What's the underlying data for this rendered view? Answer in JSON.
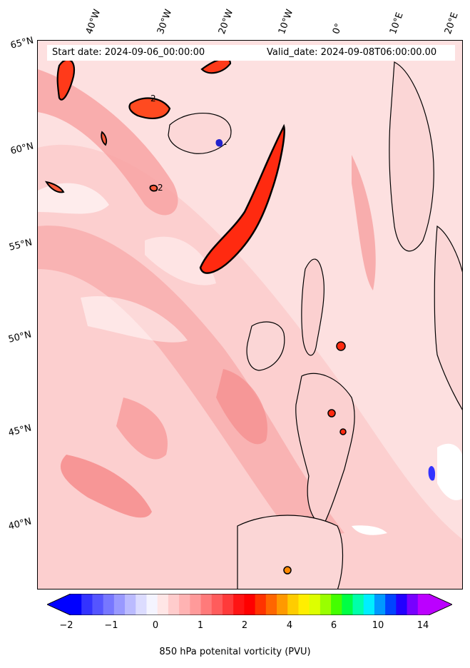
{
  "header": {
    "start_date": "Start date: 2024-09-06_00:00:00",
    "valid_date": "Valid_date: 2024-09-08T06:00:00.00"
  },
  "latitude_labels": [
    "65°N",
    "60°N",
    "55°N",
    "50°N",
    "45°N",
    "40°N"
  ],
  "longitude_labels": [
    "40°W",
    "30°W",
    "20°W",
    "10°W",
    "0°",
    "10°E",
    "20°E"
  ],
  "contour_label": "2",
  "colorbar": {
    "label": "850 hPa potenital vorticity (PVU)",
    "tick_labels": [
      "−2",
      "−1",
      "0",
      "1",
      "2",
      "4",
      "6",
      "10",
      "14"
    ],
    "colors": [
      "#0000ff",
      "#3333ff",
      "#5555ff",
      "#7777ff",
      "#9999ff",
      "#bbbbff",
      "#dcdcff",
      "#f4f4ff",
      "#ffe6e6",
      "#ffcccc",
      "#ffb3b3",
      "#ff9a9a",
      "#ff7a7a",
      "#ff5c5c",
      "#ff3a3a",
      "#ff1414",
      "#ff0000",
      "#ff3300",
      "#ff6600",
      "#ff9900",
      "#ffcc00",
      "#ffee00",
      "#ddff00",
      "#99ff00",
      "#44ff00",
      "#00ff44",
      "#00ffaa",
      "#00eeff",
      "#0099ff",
      "#0044ff",
      "#2200ff",
      "#7700ff",
      "#bb00ff"
    ],
    "under_color": "#0000ff",
    "over_color": "#bb00ff"
  }
}
